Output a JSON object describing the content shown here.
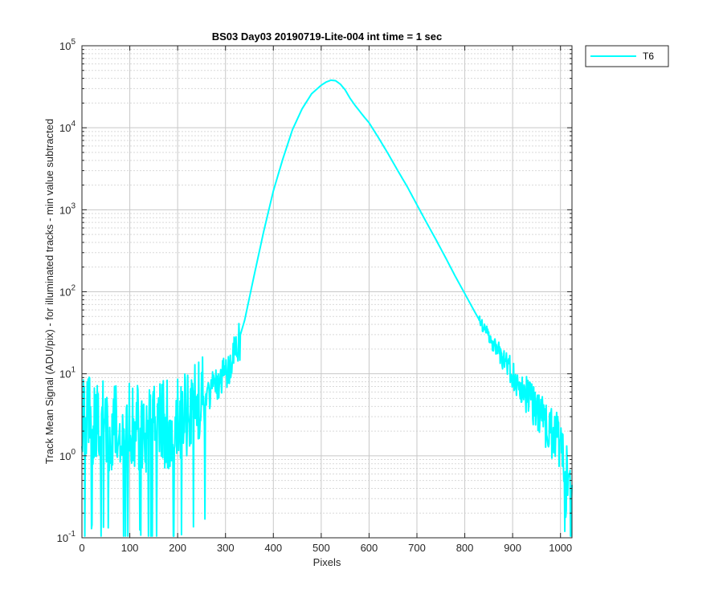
{
  "chart_data": {
    "type": "line",
    "title": "BS03 Day03 20190719-Lite-004 int time = 1 sec",
    "xlabel": "Pixels",
    "ylabel": "Track Mean Signal (ADU/pix) - for illuminated tracks - min value subtracted",
    "xlim": [
      0,
      1024
    ],
    "ylim": [
      0.1,
      100000
    ],
    "yscale": "log",
    "grid": true,
    "minor_grid": true,
    "legend_position": "outside-top-right",
    "x_ticks": [
      0,
      100,
      200,
      300,
      400,
      500,
      600,
      700,
      800,
      900,
      1000
    ],
    "x_tick_labels": [
      "0",
      "100",
      "200",
      "300",
      "400",
      "500",
      "600",
      "700",
      "800",
      "900",
      "1000"
    ],
    "y_ticks": [
      0.1,
      1,
      10,
      100,
      1000,
      10000,
      100000
    ],
    "y_tick_labels": [
      {
        "base": "10",
        "exp": "-1"
      },
      {
        "base": "10",
        "exp": "0"
      },
      {
        "base": "10",
        "exp": "1"
      },
      {
        "base": "10",
        "exp": "2"
      },
      {
        "base": "10",
        "exp": "3"
      },
      {
        "base": "10",
        "exp": "4"
      },
      {
        "base": "10",
        "exp": "5"
      }
    ],
    "series": [
      {
        "name": "T6",
        "color": "#00FFFF",
        "noise": [
          {
            "x0": 0,
            "x1": 260,
            "floor": 0.1
          },
          {
            "x0": 260,
            "x1": 330,
            "floor": 0.05
          },
          {
            "x0": 830,
            "x1": 1024,
            "floor": 0.05
          }
        ],
        "x": [
          0,
          20,
          40,
          60,
          80,
          100,
          120,
          140,
          160,
          180,
          200,
          220,
          240,
          260,
          280,
          300,
          320,
          340,
          360,
          380,
          400,
          420,
          440,
          460,
          480,
          500,
          510,
          520,
          530,
          540,
          550,
          560,
          570,
          580,
          590,
          600,
          620,
          640,
          660,
          680,
          700,
          720,
          740,
          760,
          780,
          800,
          820,
          840,
          860,
          880,
          900,
          920,
          940,
          960,
          980,
          1000,
          1010,
          1020,
          1024
        ],
        "y": [
          2.8,
          2.5,
          2.4,
          2.3,
          2.2,
          2.2,
          2.1,
          2.2,
          2.3,
          2.4,
          2.7,
          3.2,
          4.0,
          5.5,
          7.5,
          10,
          18,
          45,
          160,
          550,
          1700,
          4200,
          9500,
          17000,
          26000,
          33000,
          36000,
          38000,
          37500,
          34000,
          29000,
          23000,
          19000,
          16000,
          13500,
          11500,
          7500,
          4800,
          3000,
          1900,
          1150,
          700,
          430,
          260,
          155,
          95,
          58,
          36,
          23,
          15,
          10,
          6.5,
          4.5,
          3.0,
          2.0,
          1.3,
          0.9,
          0.6,
          0.5
        ]
      }
    ]
  }
}
